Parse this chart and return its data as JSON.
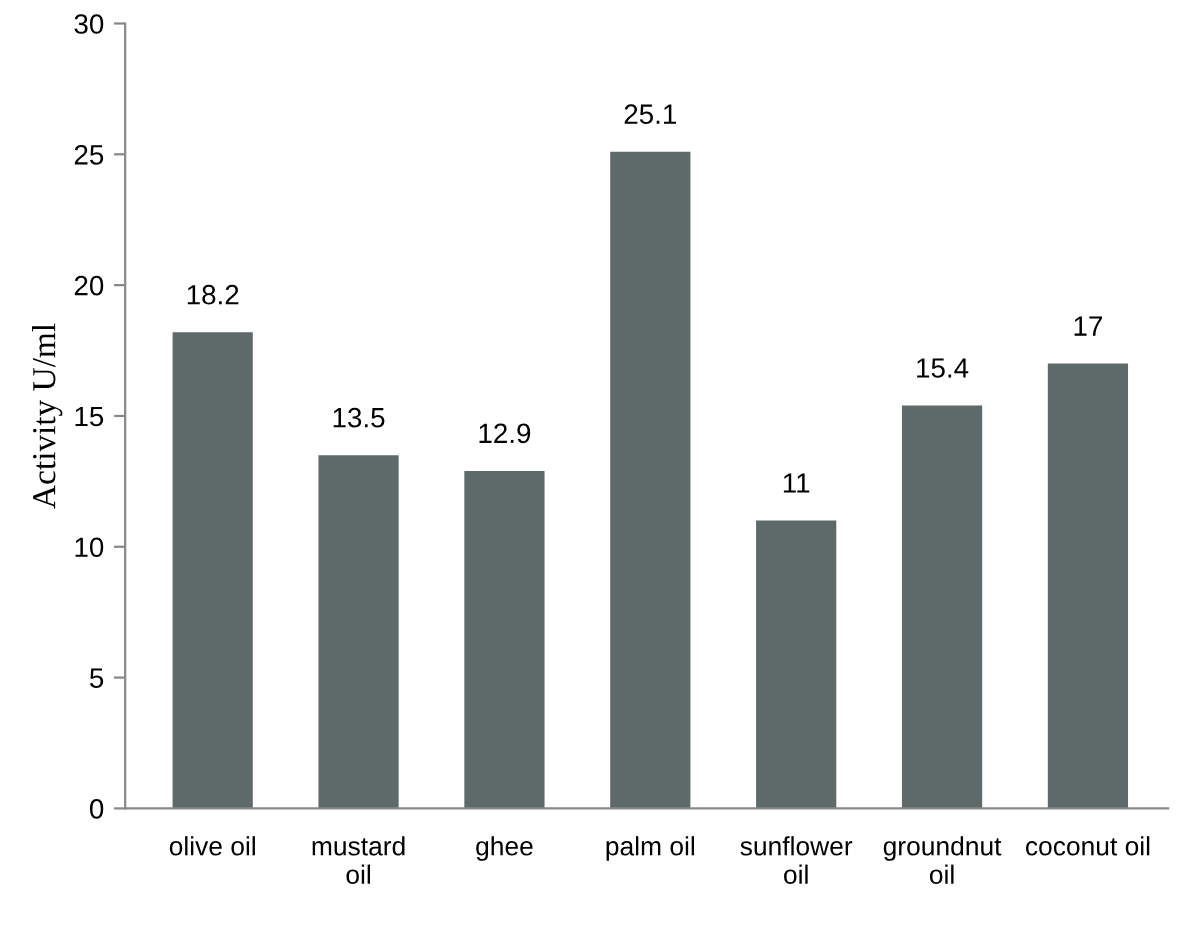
{
  "chart_data": {
    "type": "bar",
    "ylabel": "Activity U/ml",
    "categories": [
      "olive oil",
      "mustard\noil",
      "ghee",
      "palm oil",
      "sunflower\noil",
      "groundnut\noil",
      "coconut oil"
    ],
    "values": [
      18.2,
      13.5,
      12.9,
      25.1,
      11,
      15.4,
      17
    ],
    "color": "#5e6a6a",
    "ylim": [
      0,
      30
    ],
    "yticks": [
      0,
      5,
      10,
      15,
      20,
      25,
      30
    ],
    "grid": false,
    "data_labels": true
  }
}
